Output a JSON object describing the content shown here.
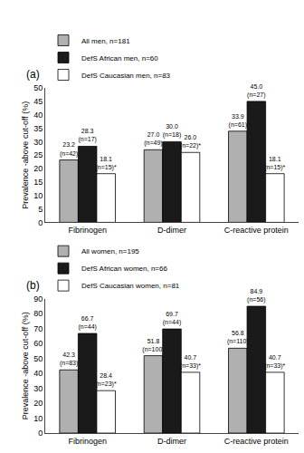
{
  "chart_data": [
    {
      "type": "bar",
      "title": "(a)",
      "categories": [
        "Fibrinogen",
        "D-dimer",
        "C-reactive protein"
      ],
      "series": [
        {
          "name": "All men, n=181",
          "color": "#b0b0b0",
          "values": [
            23.2,
            27.0,
            33.9
          ],
          "value_labels": [
            "23.2\n(n=42)",
            "27.0\n(n=49)",
            "33.9\n(n=61)"
          ]
        },
        {
          "name": "DefS African men, n=60",
          "color": "#1a1a1a",
          "values": [
            28.3,
            30.0,
            45.0
          ],
          "value_labels": [
            "28.3\n(n=17)",
            "30.0\n(n=18)",
            "45.0\n(n=27)"
          ]
        },
        {
          "name": "DefS Caucasian men, n=83",
          "color": "#ffffff",
          "values": [
            18.1,
            26.0,
            18.1
          ],
          "value_labels": [
            "18.1\n(n=15)*",
            "26.0\n(n=22)*",
            "18.1\n(n=15)*"
          ]
        }
      ],
      "ylabel": "Prevalence -above cut-off (%)",
      "ylim": [
        0,
        50
      ],
      "yticks": [
        0,
        5,
        10,
        15,
        20,
        25,
        30,
        35,
        40,
        45,
        50
      ],
      "grid": false,
      "legend": "upper left",
      "data_labels": true
    },
    {
      "type": "bar",
      "title": "(b)",
      "categories": [
        "Fibrinogen",
        "D-dimer",
        "C-reactive protein"
      ],
      "series": [
        {
          "name": "All women, n=195",
          "color": "#b0b0b0",
          "values": [
            42.3,
            51.8,
            56.8
          ],
          "value_labels": [
            "42.3\n(n=83)",
            "51.8\n(n=100)",
            "56.8\n(n=110)"
          ]
        },
        {
          "name": "DefS African women, n=66",
          "color": "#1a1a1a",
          "values": [
            66.7,
            69.7,
            84.9
          ],
          "value_labels": [
            "66.7\n(n=44)",
            "69.7\n(n=44)",
            "84.9\n(n=56)"
          ]
        },
        {
          "name": "DefS Caucasian women, n=81",
          "color": "#ffffff",
          "values": [
            28.4,
            40.7,
            40.7
          ],
          "value_labels": [
            "28.4\n(n=23)*",
            "40.7\n(n=33)*",
            "40.7\n(n=33)*"
          ]
        }
      ],
      "ylabel": "Prevalence -above cut-off (%)",
      "ylim": [
        0,
        90
      ],
      "yticks": [
        0,
        10,
        20,
        30,
        40,
        50,
        60,
        70,
        80,
        90
      ],
      "grid": false,
      "legend": "upper left",
      "data_labels": true
    }
  ]
}
